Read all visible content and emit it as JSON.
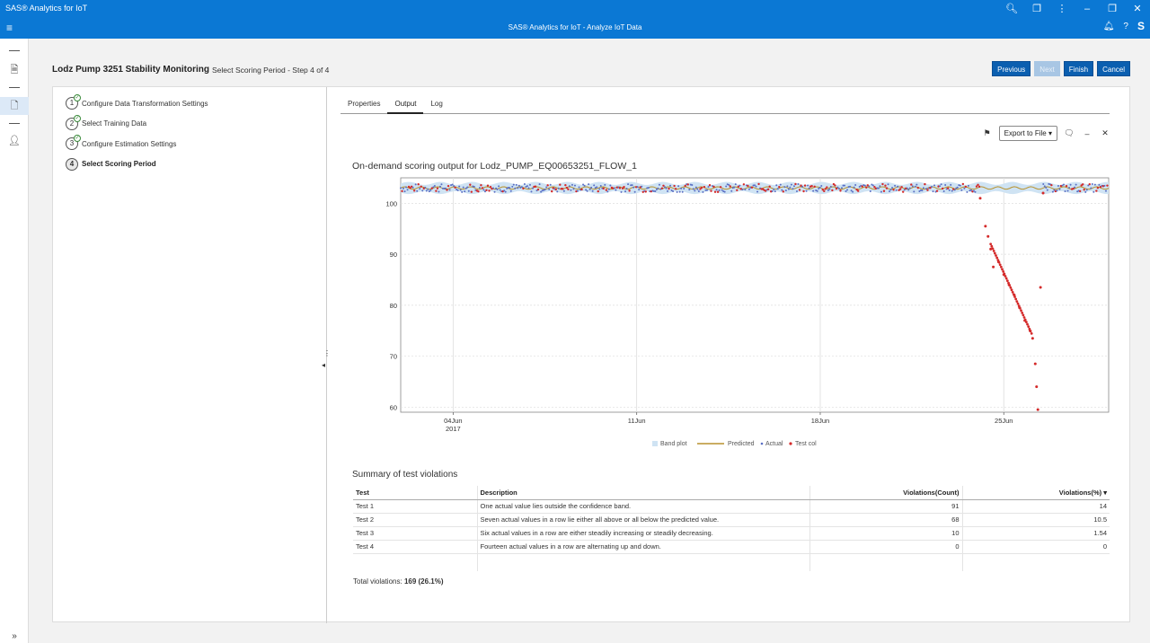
{
  "window": {
    "title": "SAS® Analytics for IoT",
    "icons": [
      "search-icon",
      "extensions-icon",
      "more-icon",
      "minimize-icon",
      "restore-icon",
      "close-icon"
    ]
  },
  "appbar": {
    "title": "SAS® Analytics for IoT - Analyze IoT Data",
    "avatar": "S"
  },
  "page": {
    "title": "Lodz Pump 3251 Stability Monitoring",
    "subtitle": "Select Scoring Period - Step 4 of 4"
  },
  "buttons": {
    "previous": "Previous",
    "next": "Next",
    "finish": "Finish",
    "cancel": "Cancel"
  },
  "steps": [
    {
      "num": "1",
      "label": "Configure Data Transformation Settings",
      "done": true
    },
    {
      "num": "2",
      "label": "Select Training Data",
      "done": true
    },
    {
      "num": "3",
      "label": "Configure Estimation Settings",
      "done": true
    },
    {
      "num": "4",
      "label": "Select Scoring Period",
      "done": false
    }
  ],
  "tabs": [
    "Properties",
    "Output",
    "Log"
  ],
  "active_tab": "Output",
  "toolbar": {
    "export_label": "Export to File"
  },
  "chart_data": {
    "type": "line",
    "title": "On-demand scoring output for Lodz_PUMP_EQ00653251_FLOW_1",
    "xlabel": "",
    "ylabel": "",
    "ylim": [
      59,
      105
    ],
    "yticks": [
      60,
      70,
      80,
      90,
      100
    ],
    "xlim": [
      "2017-06-02",
      "2017-06-29"
    ],
    "xticks": [
      {
        "label": "04Jun",
        "sub": "2017",
        "date": "2017-06-04"
      },
      {
        "label": "11Jun",
        "sub": "",
        "date": "2017-06-11"
      },
      {
        "label": "18Jun",
        "sub": "",
        "date": "2017-06-18"
      },
      {
        "label": "25Jun",
        "sub": "",
        "date": "2017-06-25"
      }
    ],
    "grid": true,
    "legend": [
      "Band plot",
      "Predicted",
      "Actual",
      "Test col"
    ],
    "legend_placement": "bottom-center",
    "colors": {
      "band": "#cfe3f3",
      "predicted": "#b8922e",
      "actual": "#5a6fc4",
      "test": "#d42a2a"
    },
    "series": [
      {
        "name": "Predicted",
        "baseline": 103,
        "values": []
      },
      {
        "name": "Test col",
        "anomaly_points": [
          {
            "x": "2017-06-24.1",
            "y": 101
          },
          {
            "x": "2017-06-24.3",
            "y": 95.5
          },
          {
            "x": "2017-06-24.4",
            "y": 93.5
          },
          {
            "x": "2017-06-24.5",
            "y": 91
          },
          {
            "x": "2017-06-24.6",
            "y": 87.5
          },
          {
            "x": "2017-06-24.8",
            "y": 88.5
          },
          {
            "x": "2017-06-25.0",
            "y": 86
          },
          {
            "x": "2017-06-25.2",
            "y": 84
          },
          {
            "x": "2017-06-25.4",
            "y": 82
          },
          {
            "x": "2017-06-25.6",
            "y": 79.5
          },
          {
            "x": "2017-06-25.8",
            "y": 77
          },
          {
            "x": "2017-06-26.0",
            "y": 75
          },
          {
            "x": "2017-06-26.1",
            "y": 73.5
          },
          {
            "x": "2017-06-26.2",
            "y": 68.5
          },
          {
            "x": "2017-06-26.25",
            "y": 64
          },
          {
            "x": "2017-06-26.3",
            "y": 59.5
          },
          {
            "x": "2017-06-26.4",
            "y": 83.5
          },
          {
            "x": "2017-06-26.5",
            "y": 102
          }
        ]
      }
    ]
  },
  "summary": {
    "title": "Summary of test violations",
    "columns": [
      "Test",
      "Description",
      "Violations(Count)",
      "Violations(%)"
    ],
    "rows": [
      {
        "test": "Test 1",
        "description": "One actual value lies outside the confidence band.",
        "count": "91",
        "pct": "14"
      },
      {
        "test": "Test 2",
        "description": "Seven actual values in a row lie either all above or all below the predicted value.",
        "count": "68",
        "pct": "10.5"
      },
      {
        "test": "Test 3",
        "description": "Six actual values in a row are either steadily increasing or steadily decreasing.",
        "count": "10",
        "pct": "1.54"
      },
      {
        "test": "Test 4",
        "description": "Fourteen actual values in a row are alternating up and down.",
        "count": "0",
        "pct": "0"
      }
    ],
    "total_label": "Total violations:",
    "total_value": "169 (26.1%)"
  }
}
